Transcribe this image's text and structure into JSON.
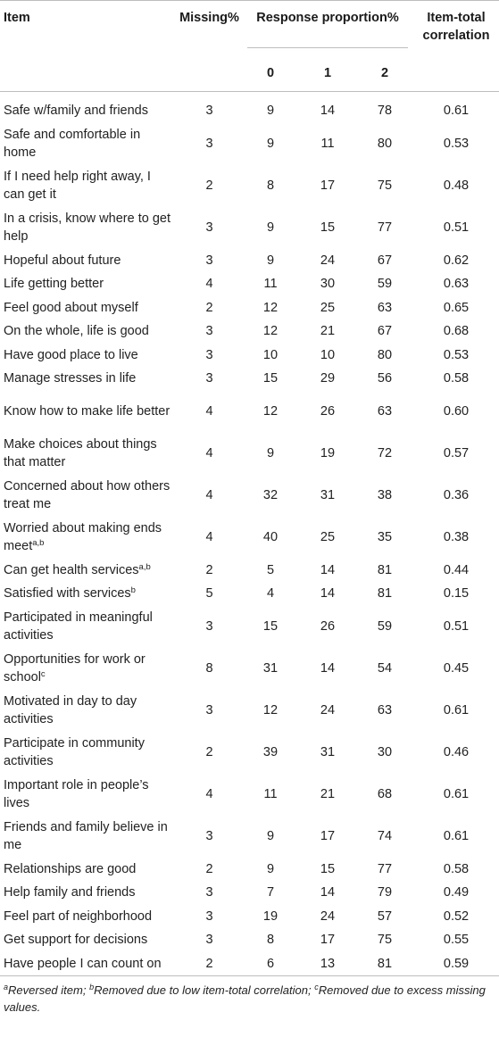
{
  "headers": {
    "item": "Item",
    "missing": "Missing%",
    "response": "Response proportion%",
    "r0": "0",
    "r1": "1",
    "r2": "2",
    "itc_line1": "Item-total",
    "itc_line2": "correlation"
  },
  "rows": [
    {
      "item": "Safe w/family and friends",
      "sup": "",
      "missing": "3",
      "r0": "9",
      "r1": "14",
      "r2": "78",
      "itc": "0.61",
      "lines": 1
    },
    {
      "item": "Safe and comfortable in home",
      "sup": "",
      "missing": "3",
      "r0": "9",
      "r1": "11",
      "r2": "80",
      "itc": "0.53",
      "lines": 2
    },
    {
      "item": "If I need help right away, I can get it",
      "sup": "",
      "missing": "2",
      "r0": "8",
      "r1": "17",
      "r2": "75",
      "itc": "0.48",
      "lines": 2
    },
    {
      "item": "In a crisis, know where to get help",
      "sup": "",
      "missing": "3",
      "r0": "9",
      "r1": "15",
      "r2": "77",
      "itc": "0.51",
      "lines": 2
    },
    {
      "item": "Hopeful about future",
      "sup": "",
      "missing": "3",
      "r0": "9",
      "r1": "24",
      "r2": "67",
      "itc": "0.62",
      "lines": 1
    },
    {
      "item": "Life getting better",
      "sup": "",
      "missing": "4",
      "r0": "11",
      "r1": "30",
      "r2": "59",
      "itc": "0.63",
      "lines": 1
    },
    {
      "item": "Feel good about myself",
      "sup": "",
      "missing": "2",
      "r0": "12",
      "r1": "25",
      "r2": "63",
      "itc": "0.65",
      "lines": 1
    },
    {
      "item": "On the whole, life is good",
      "sup": "",
      "missing": "3",
      "r0": "12",
      "r1": "21",
      "r2": "67",
      "itc": "0.68",
      "lines": 1
    },
    {
      "item": "Have good place to live",
      "sup": "",
      "missing": "3",
      "r0": "10",
      "r1": "10",
      "r2": "80",
      "itc": "0.53",
      "lines": 1
    },
    {
      "item": "Manage stresses in life",
      "sup": "",
      "missing": "3",
      "r0": "15",
      "r1": "29",
      "r2": "56",
      "itc": "0.58",
      "lines": 1
    },
    {
      "item": "Know how to make life better",
      "sup": "",
      "missing": "4",
      "r0": "12",
      "r1": "26",
      "r2": "63",
      "itc": "0.60",
      "lines": 2
    },
    {
      "item": "Make choices about things that matter",
      "sup": "",
      "missing": "4",
      "r0": "9",
      "r1": "19",
      "r2": "72",
      "itc": "0.57",
      "lines": 2
    },
    {
      "item": "Concerned about how others treat me",
      "sup": "",
      "missing": "4",
      "r0": "32",
      "r1": "31",
      "r2": "38",
      "itc": "0.36",
      "lines": 2
    },
    {
      "item": "Worried about making ends meet",
      "sup": "a,b",
      "missing": "4",
      "r0": "40",
      "r1": "25",
      "r2": "35",
      "itc": "0.38",
      "lines": 2
    },
    {
      "item": "Can get health services",
      "sup": "a,b",
      "missing": "2",
      "r0": "5",
      "r1": "14",
      "r2": "81",
      "itc": "0.44",
      "lines": 1
    },
    {
      "item": "Satisfied with services",
      "sup": "b",
      "missing": "5",
      "r0": "4",
      "r1": "14",
      "r2": "81",
      "itc": "0.15",
      "lines": 1
    },
    {
      "item": "Participated in meaningful activities",
      "sup": "",
      "missing": "3",
      "r0": "15",
      "r1": "26",
      "r2": "59",
      "itc": "0.51",
      "lines": 2
    },
    {
      "item": "Opportunities for work or school",
      "sup": "c",
      "missing": "8",
      "r0": "31",
      "r1": "14",
      "r2": "54",
      "itc": "0.45",
      "lines": 2
    },
    {
      "item": "Motivated in day to day activities",
      "sup": "",
      "missing": "3",
      "r0": "12",
      "r1": "24",
      "r2": "63",
      "itc": "0.61",
      "lines": 2
    },
    {
      "item": "Participate in community activities",
      "sup": "",
      "missing": "2",
      "r0": "39",
      "r1": "31",
      "r2": "30",
      "itc": "0.46",
      "lines": 2
    },
    {
      "item": "Important role in people’s lives",
      "sup": "",
      "missing": "4",
      "r0": "11",
      "r1": "21",
      "r2": "68",
      "itc": "0.61",
      "lines": 2
    },
    {
      "item": "Friends and family believe in me",
      "sup": "",
      "missing": "3",
      "r0": "9",
      "r1": "17",
      "r2": "74",
      "itc": "0.61",
      "lines": 2
    },
    {
      "item": "Relationships are good",
      "sup": "",
      "missing": "2",
      "r0": "9",
      "r1": "15",
      "r2": "77",
      "itc": "0.58",
      "lines": 1
    },
    {
      "item": "Help family and friends",
      "sup": "",
      "missing": "3",
      "r0": "7",
      "r1": "14",
      "r2": "79",
      "itc": "0.49",
      "lines": 1
    },
    {
      "item": "Feel part of neighborhood",
      "sup": "",
      "missing": "3",
      "r0": "19",
      "r1": "24",
      "r2": "57",
      "itc": "0.52",
      "lines": 1
    },
    {
      "item": "Get support for decisions",
      "sup": "",
      "missing": "3",
      "r0": "8",
      "r1": "17",
      "r2": "75",
      "itc": "0.55",
      "lines": 1
    },
    {
      "item": "Have people I can count on",
      "sup": "",
      "missing": "2",
      "r0": "6",
      "r1": "13",
      "r2": "81",
      "itc": "0.59",
      "lines": 1
    }
  ],
  "footnote": {
    "a_mark": "a",
    "a_text": "Reversed item; ",
    "b_mark": "b",
    "b_text": "Removed due to low item-total correlation; ",
    "c_mark": "c",
    "c_text": "Removed due to excess missing values."
  }
}
